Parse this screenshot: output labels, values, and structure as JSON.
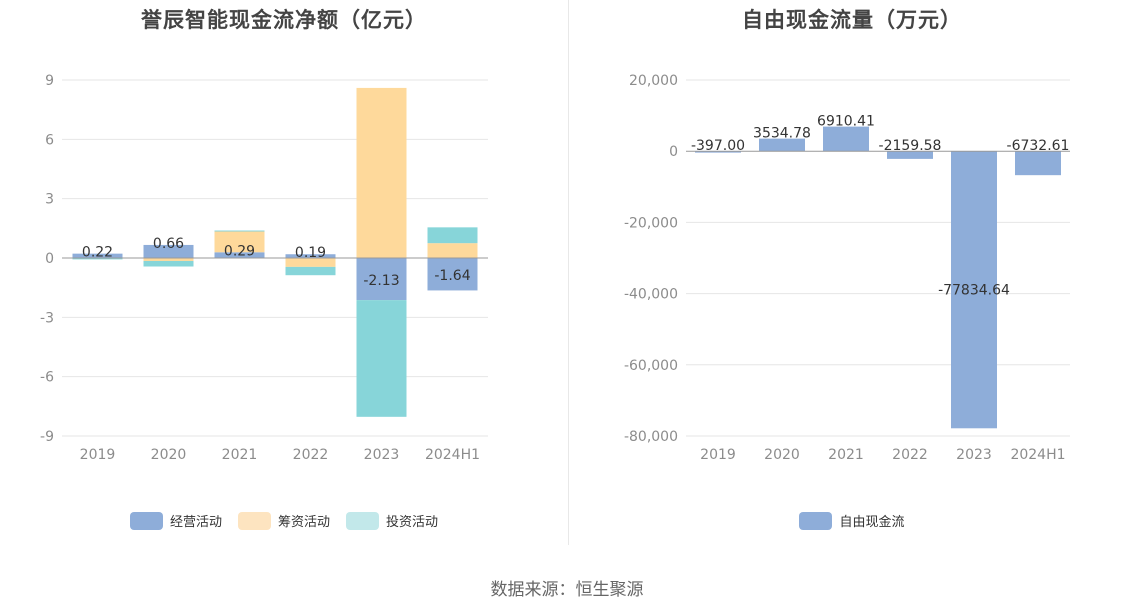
{
  "colors": {
    "operating": "#8eadd9",
    "financing": "#fed99b",
    "investing": "#87d5d9",
    "free_cash_flow": "#8eadd9",
    "grid": "#e6e6e6",
    "axis": "#999999"
  },
  "chart_data": [
    {
      "type": "bar",
      "stacked": true,
      "title": "誉辰智能现金流净额（亿元）",
      "categories": [
        "2019",
        "2020",
        "2021",
        "2022",
        "2023",
        "2024H1"
      ],
      "ylim": [
        -9,
        9
      ],
      "yticks": [
        "9",
        "6",
        "3",
        "0",
        "-3",
        "-6",
        "-9"
      ],
      "ytick_values": [
        9,
        6,
        3,
        0,
        -3,
        -6,
        -9
      ],
      "grid": true,
      "legend_position": "bottom",
      "series": [
        {
          "name": "经营活动",
          "color_key": "operating",
          "values": [
            0.22,
            0.66,
            0.29,
            0.19,
            -2.13,
            -1.64
          ]
        },
        {
          "name": "筹资活动",
          "color_key": "financing",
          "values": [
            -0.02,
            -0.15,
            1.05,
            -0.45,
            8.6,
            0.75
          ]
        },
        {
          "name": "投资活动",
          "color_key": "investing",
          "values": [
            -0.03,
            -0.28,
            0.05,
            -0.42,
            -5.9,
            0.8
          ]
        }
      ],
      "data_labels": [
        "0.22",
        "0.66",
        "0.29",
        "0.19",
        "-2.13",
        "-1.64"
      ]
    },
    {
      "type": "bar",
      "title": "自由现金流量（万元）",
      "categories": [
        "2019",
        "2020",
        "2021",
        "2022",
        "2023",
        "2024H1"
      ],
      "ylim": [
        -80000,
        20000
      ],
      "yticks": [
        "20,000",
        "0",
        "-20,000",
        "-40,000",
        "-60,000",
        "-80,000"
      ],
      "ytick_values": [
        20000,
        0,
        -20000,
        -40000,
        -60000,
        -80000
      ],
      "grid": true,
      "legend_position": "bottom",
      "series": [
        {
          "name": "自由现金流",
          "color_key": "free_cash_flow",
          "values": [
            -397.0,
            3534.78,
            6910.41,
            -2159.58,
            -77834.64,
            -6732.61
          ]
        }
      ],
      "data_labels": [
        "-397.00",
        "3534.78",
        "6910.41",
        "-2159.58",
        "-77834.64",
        "-6732.61"
      ]
    }
  ],
  "footer": {
    "source": "数据来源：恒生聚源"
  }
}
